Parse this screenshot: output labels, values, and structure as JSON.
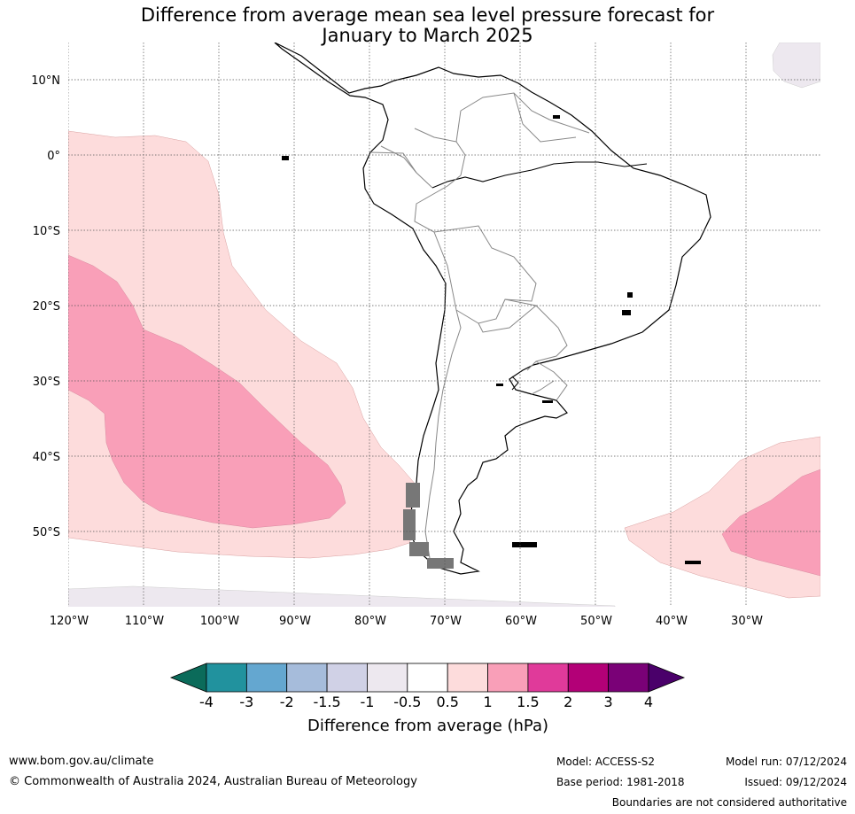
{
  "title_line1": "Difference from average mean sea level pressure forecast for",
  "title_line2": "January to March 2025",
  "lat_labels": [
    "10°N",
    "0°",
    "10°S",
    "20°S",
    "30°S",
    "40°S",
    "50°S"
  ],
  "lon_labels": [
    "120°W",
    "110°W",
    "100°W",
    "90°W",
    "80°W",
    "70°W",
    "60°W",
    "50°W",
    "40°W",
    "30°W"
  ],
  "colorbar": {
    "label": "Difference from average (hPa)",
    "ticks": [
      "-4",
      "-3",
      "-2",
      "-1.5",
      "-1",
      "-0.5",
      "0.5",
      "1",
      "1.5",
      "2",
      "3",
      "4"
    ],
    "colors": [
      "#0b6b5a",
      "#21929e",
      "#64a7d0",
      "#a6bcdb",
      "#d0d1e6",
      "#ede8ef",
      "#ffffff",
      "#fddcdc",
      "#f99fb8",
      "#e03a9a",
      "#b30077",
      "#7a0177",
      "#4a006a"
    ]
  },
  "footer": {
    "website": "www.bom.gov.au/climate",
    "copyright": "© Commonwealth of Australia 2024, Australian Bureau of Meteorology",
    "model": "Model: ACCESS-S2",
    "base_period": "Base period: 1981-2018",
    "model_run": "Model run: 07/12/2024",
    "issued": "Issued: 09/12/2024",
    "disclaimer": "Boundaries are not considered authoritative"
  }
}
